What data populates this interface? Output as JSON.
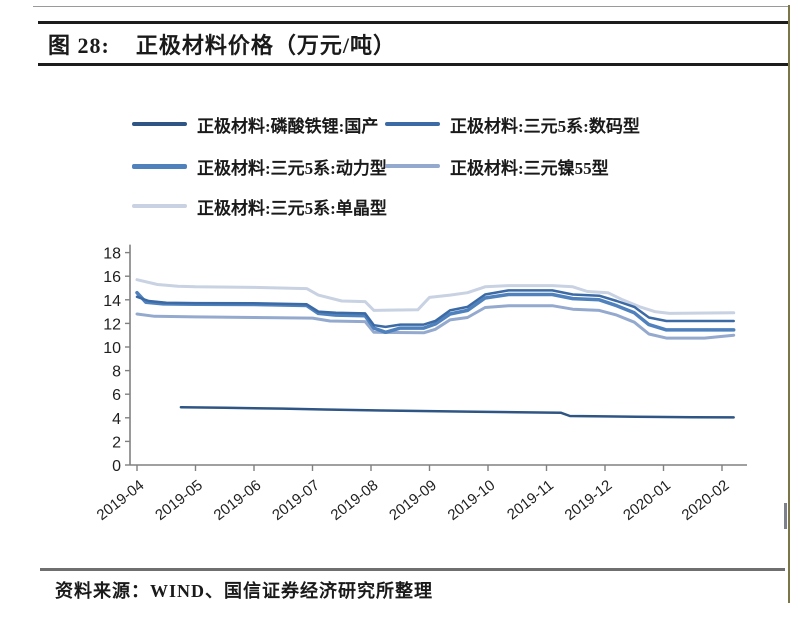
{
  "figure": {
    "title_label": "图 28:",
    "title_text": "正极材料价格（万元/吨）",
    "source_text": "资料来源：WIND、国信证券经济研究所整理"
  },
  "chart_data": {
    "type": "line",
    "title": "正极材料价格（万元/吨）",
    "unit": "万元/吨",
    "x_tick_labels": [
      "2019-04",
      "2019-05",
      "2019-06",
      "2019-07",
      "2019-08",
      "2019-09",
      "2019-10",
      "2019-11",
      "2019-12",
      "2020-01",
      "2020-02"
    ],
    "ylim": [
      0,
      18
    ],
    "y_tick_step": 2,
    "grid": false,
    "legend_position": "top",
    "axis_color": "#808080",
    "tick_label_color": "#1f1f1f",
    "series": [
      {
        "name": "正极材料:磷酸铁锂:国产",
        "color": "#2e5584",
        "width": 2.5,
        "points": [
          [
            0.75,
            4.9
          ],
          [
            1.5,
            4.85
          ],
          [
            2.5,
            4.78
          ],
          [
            3.2,
            4.7
          ],
          [
            4.2,
            4.62
          ],
          [
            5,
            4.57
          ],
          [
            5.8,
            4.52
          ],
          [
            6.5,
            4.47
          ],
          [
            7.25,
            4.42
          ],
          [
            7.4,
            4.15
          ],
          [
            8,
            4.12
          ],
          [
            8.8,
            4.08
          ],
          [
            9.5,
            4.05
          ],
          [
            10.2,
            4.03
          ]
        ]
      },
      {
        "name": "正极材料:三元5系:数码型",
        "color": "#3b6aa5",
        "width": 2.5,
        "points": [
          [
            0,
            14.25
          ],
          [
            0.2,
            13.9
          ],
          [
            0.5,
            13.75
          ],
          [
            1,
            13.72
          ],
          [
            2,
            13.7
          ],
          [
            2.9,
            13.62
          ],
          [
            3.1,
            13.0
          ],
          [
            3.4,
            12.9
          ],
          [
            3.9,
            12.85
          ],
          [
            4.05,
            11.85
          ],
          [
            4.25,
            11.7
          ],
          [
            4.5,
            11.9
          ],
          [
            4.9,
            11.9
          ],
          [
            5.1,
            12.2
          ],
          [
            5.35,
            13.1
          ],
          [
            5.65,
            13.4
          ],
          [
            5.95,
            14.45
          ],
          [
            6.35,
            14.8
          ],
          [
            7.1,
            14.8
          ],
          [
            7.45,
            14.45
          ],
          [
            7.9,
            14.35
          ],
          [
            8.2,
            13.9
          ],
          [
            8.5,
            13.4
          ],
          [
            8.75,
            12.5
          ],
          [
            9.05,
            12.2
          ],
          [
            10.2,
            12.2
          ]
        ]
      },
      {
        "name": "正极材料:三元5系:动力型",
        "color": "#4f81bd",
        "width": 3.5,
        "points": [
          [
            0,
            14.6
          ],
          [
            0.15,
            13.8
          ],
          [
            0.45,
            13.65
          ],
          [
            1,
            13.62
          ],
          [
            2,
            13.6
          ],
          [
            2.9,
            13.52
          ],
          [
            3.1,
            12.85
          ],
          [
            3.4,
            12.7
          ],
          [
            3.9,
            12.65
          ],
          [
            4.05,
            11.6
          ],
          [
            4.25,
            11.25
          ],
          [
            4.5,
            11.6
          ],
          [
            4.9,
            11.6
          ],
          [
            5.1,
            11.95
          ],
          [
            5.35,
            12.8
          ],
          [
            5.65,
            13.1
          ],
          [
            5.95,
            14.15
          ],
          [
            6.35,
            14.45
          ],
          [
            7.1,
            14.45
          ],
          [
            7.45,
            14.1
          ],
          [
            7.9,
            14.0
          ],
          [
            8.2,
            13.5
          ],
          [
            8.5,
            12.9
          ],
          [
            8.75,
            11.9
          ],
          [
            9.05,
            11.45
          ],
          [
            10.2,
            11.45
          ]
        ]
      },
      {
        "name": "正极材料:三元镍55型",
        "color": "#94a9ce",
        "width": 3,
        "points": [
          [
            0,
            12.8
          ],
          [
            0.3,
            12.6
          ],
          [
            1,
            12.55
          ],
          [
            2,
            12.5
          ],
          [
            3,
            12.45
          ],
          [
            3.3,
            12.2
          ],
          [
            3.9,
            12.15
          ],
          [
            4.05,
            11.25
          ],
          [
            4.9,
            11.2
          ],
          [
            5.1,
            11.5
          ],
          [
            5.35,
            12.3
          ],
          [
            5.65,
            12.5
          ],
          [
            5.95,
            13.35
          ],
          [
            6.35,
            13.5
          ],
          [
            7.1,
            13.5
          ],
          [
            7.45,
            13.2
          ],
          [
            7.9,
            13.1
          ],
          [
            8.2,
            12.7
          ],
          [
            8.5,
            12.1
          ],
          [
            8.75,
            11.1
          ],
          [
            9.05,
            10.75
          ],
          [
            9.7,
            10.75
          ],
          [
            10.2,
            11.0
          ]
        ]
      },
      {
        "name": "正极材料:三元5系:单晶型",
        "color": "#c8d2e2",
        "width": 3,
        "points": [
          [
            0,
            15.7
          ],
          [
            0.35,
            15.3
          ],
          [
            0.7,
            15.15
          ],
          [
            1,
            15.1
          ],
          [
            2,
            15.05
          ],
          [
            2.9,
            14.95
          ],
          [
            3.1,
            14.4
          ],
          [
            3.5,
            13.9
          ],
          [
            3.9,
            13.85
          ],
          [
            4.05,
            13.1
          ],
          [
            4.8,
            13.15
          ],
          [
            5.0,
            14.2
          ],
          [
            5.35,
            14.4
          ],
          [
            5.65,
            14.6
          ],
          [
            5.95,
            15.1
          ],
          [
            6.35,
            15.2
          ],
          [
            7.1,
            15.2
          ],
          [
            7.45,
            15.1
          ],
          [
            7.7,
            14.7
          ],
          [
            8.05,
            14.6
          ],
          [
            8.3,
            14.0
          ],
          [
            8.6,
            13.4
          ],
          [
            8.85,
            13.0
          ],
          [
            9.1,
            12.85
          ],
          [
            10.2,
            12.9
          ]
        ]
      }
    ],
    "draw_order": [
      4,
      3,
      2,
      1,
      0
    ]
  }
}
